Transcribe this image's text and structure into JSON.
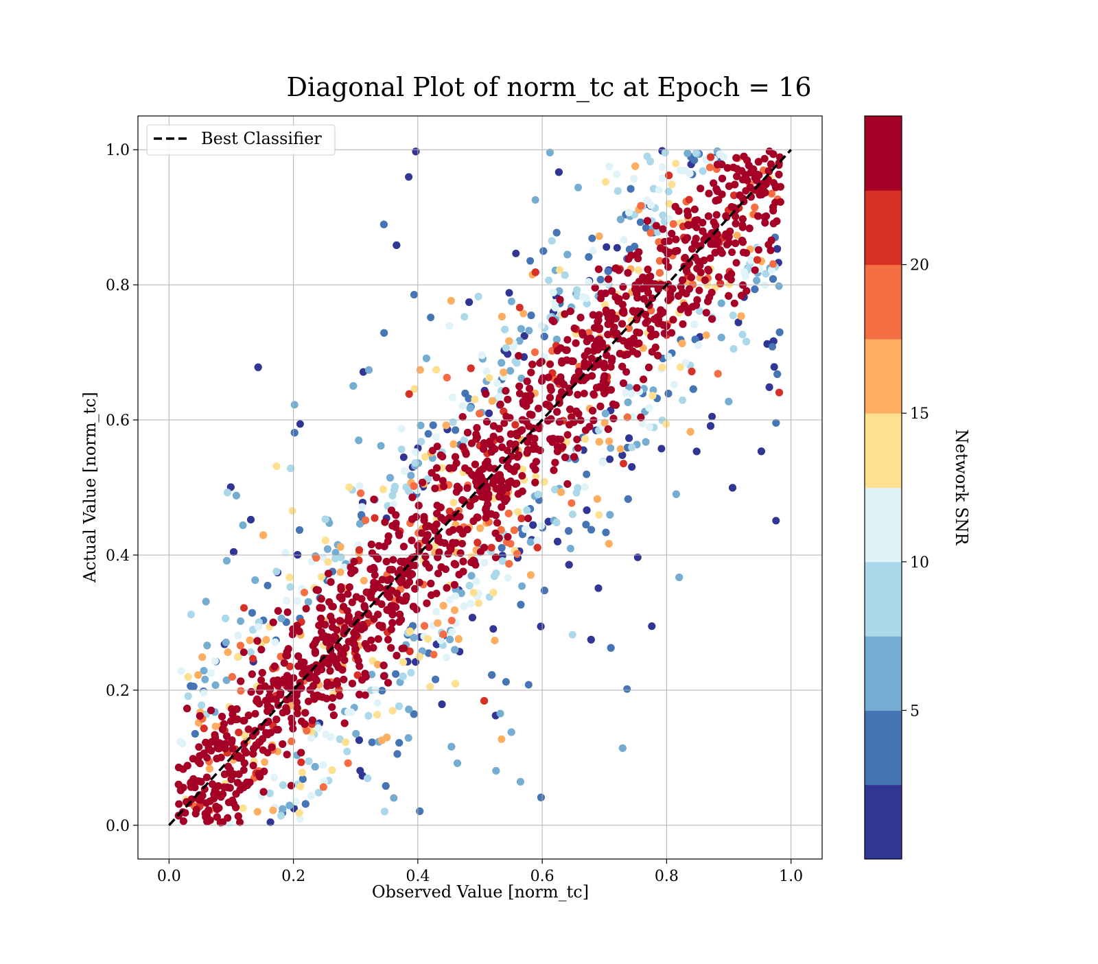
{
  "chart_data": {
    "type": "scatter",
    "title": "Diagonal Plot of norm_tc at Epoch = 16",
    "xlabel": "Observed Value [norm_tc]",
    "ylabel": "Actual Value [norm_tc]",
    "xlim": [
      -0.05,
      1.05
    ],
    "ylim": [
      -0.05,
      1.05
    ],
    "xticks": [
      "0.0",
      "0.2",
      "0.4",
      "0.6",
      "0.8",
      "1.0"
    ],
    "yticks": [
      "0.0",
      "0.2",
      "0.4",
      "0.6",
      "0.8",
      "1.0"
    ],
    "xtick_values": [
      0.0,
      0.2,
      0.4,
      0.6,
      0.8,
      1.0
    ],
    "ytick_values": [
      0.0,
      0.2,
      0.4,
      0.6,
      0.8,
      1.0
    ],
    "grid": true,
    "legend": {
      "position": "top-left",
      "entries": [
        "Best Classifier"
      ]
    },
    "reference_line": {
      "name": "Best Classifier",
      "style": "dashed",
      "color": "#000000",
      "x": [
        0.0,
        1.0
      ],
      "y": [
        0.0,
        1.0
      ]
    },
    "colorbar": {
      "label": "Network SNR",
      "range": [
        0,
        25
      ],
      "ticks": [
        "5",
        "10",
        "15",
        "20"
      ],
      "tick_values": [
        5,
        10,
        15,
        20
      ],
      "colors": [
        "#313695",
        "#4575b4",
        "#74add1",
        "#abd9e9",
        "#e0f3f8",
        "#fee090",
        "#fdae61",
        "#f46d43",
        "#d73027",
        "#a50026"
      ]
    },
    "scatter_summary": {
      "description_values": {
        "core_band_halfwidth": 0.12,
        "x_range": [
          0.02,
          0.98
        ],
        "y_range": [
          0.0,
          1.0
        ]
      }
    }
  }
}
